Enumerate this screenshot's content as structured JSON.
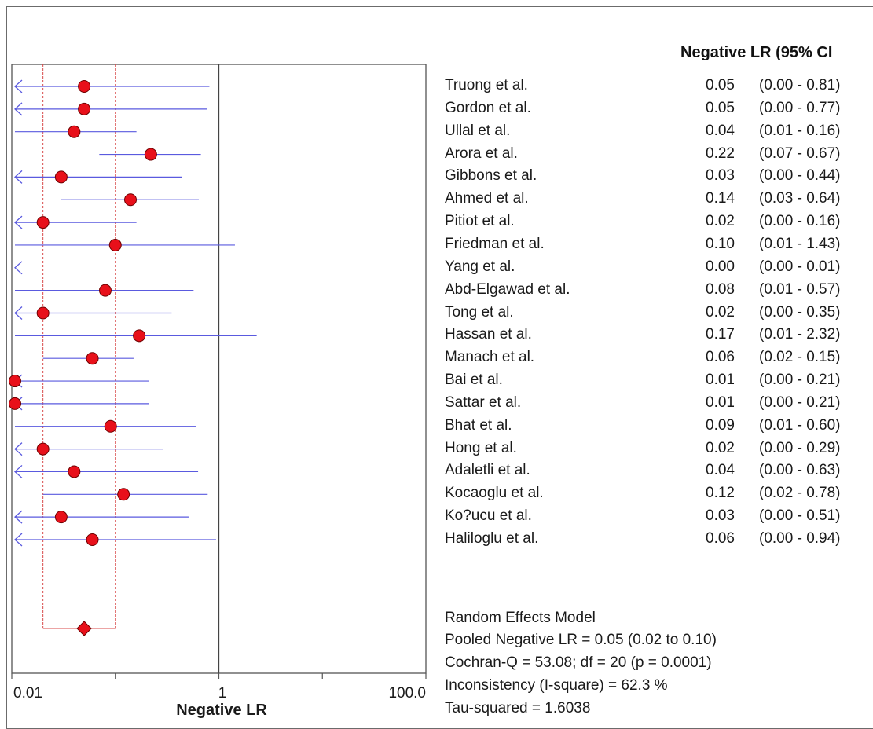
{
  "chart_data": {
    "type": "forest",
    "xlabel": "Negative LR",
    "x_scale": "log",
    "xlim": [
      0.01,
      100.0
    ],
    "x_ticks": [
      "0.01",
      "1",
      "100.0"
    ],
    "column_header": "Negative LR (95% CI",
    "studies": [
      {
        "name": "Truong et al.",
        "value": 0.05,
        "value_label": "0.05",
        "lower": 0.0,
        "upper": 0.81,
        "ci_label": "(0.00 - 0.81)"
      },
      {
        "name": "Gordon et al.",
        "value": 0.05,
        "value_label": "0.05",
        "lower": 0.0,
        "upper": 0.77,
        "ci_label": "(0.00 - 0.77)"
      },
      {
        "name": "Ullal et al.",
        "value": 0.04,
        "value_label": "0.04",
        "lower": 0.01,
        "upper": 0.16,
        "ci_label": "(0.01 - 0.16)"
      },
      {
        "name": "Arora et al.",
        "value": 0.22,
        "value_label": "0.22",
        "lower": 0.07,
        "upper": 0.67,
        "ci_label": "(0.07 - 0.67)"
      },
      {
        "name": "Gibbons et al.",
        "value": 0.03,
        "value_label": "0.03",
        "lower": 0.0,
        "upper": 0.44,
        "ci_label": "(0.00 - 0.44)"
      },
      {
        "name": "Ahmed et al.",
        "value": 0.14,
        "value_label": "0.14",
        "lower": 0.03,
        "upper": 0.64,
        "ci_label": "(0.03 - 0.64)"
      },
      {
        "name": "Pitiot et al.",
        "value": 0.02,
        "value_label": "0.02",
        "lower": 0.0,
        "upper": 0.16,
        "ci_label": "(0.00 - 0.16)"
      },
      {
        "name": "Friedman et al.",
        "value": 0.1,
        "value_label": "0.10",
        "lower": 0.01,
        "upper": 1.43,
        "ci_label": "(0.01 - 1.43)"
      },
      {
        "name": "Yang et al.",
        "value": 0.0,
        "value_label": "0.00",
        "lower": 0.0,
        "upper": 0.01,
        "ci_label": "(0.00 - 0.01)"
      },
      {
        "name": "Abd-Elgawad et al.",
        "value": 0.08,
        "value_label": "0.08",
        "lower": 0.01,
        "upper": 0.57,
        "ci_label": "(0.01 - 0.57)"
      },
      {
        "name": "Tong et al.",
        "value": 0.02,
        "value_label": "0.02",
        "lower": 0.0,
        "upper": 0.35,
        "ci_label": "(0.00 - 0.35)"
      },
      {
        "name": "Hassan et al.",
        "value": 0.17,
        "value_label": "0.17",
        "lower": 0.01,
        "upper": 2.32,
        "ci_label": "(0.01 - 2.32)"
      },
      {
        "name": "Manach et al.",
        "value": 0.06,
        "value_label": "0.06",
        "lower": 0.02,
        "upper": 0.15,
        "ci_label": "(0.02 - 0.15)"
      },
      {
        "name": "Bai et al.",
        "value": 0.01,
        "value_label": "0.01",
        "lower": 0.0,
        "upper": 0.21,
        "ci_label": "(0.00 - 0.21)"
      },
      {
        "name": "Sattar et al.",
        "value": 0.01,
        "value_label": "0.01",
        "lower": 0.0,
        "upper": 0.21,
        "ci_label": "(0.00 - 0.21)"
      },
      {
        "name": "Bhat et al.",
        "value": 0.09,
        "value_label": "0.09",
        "lower": 0.01,
        "upper": 0.6,
        "ci_label": "(0.01 - 0.60)"
      },
      {
        "name": "Hong et al.",
        "value": 0.02,
        "value_label": "0.02",
        "lower": 0.0,
        "upper": 0.29,
        "ci_label": "(0.00 - 0.29)"
      },
      {
        "name": "Adaletli et al.",
        "value": 0.04,
        "value_label": "0.04",
        "lower": 0.0,
        "upper": 0.63,
        "ci_label": "(0.00 - 0.63)"
      },
      {
        "name": "Kocaoglu et al.",
        "value": 0.12,
        "value_label": "0.12",
        "lower": 0.02,
        "upper": 0.78,
        "ci_label": "(0.02 - 0.78)"
      },
      {
        "name": "Ko?ucu et al.",
        "value": 0.03,
        "value_label": "0.03",
        "lower": 0.0,
        "upper": 0.51,
        "ci_label": "(0.00 - 0.51)"
      },
      {
        "name": "Haliloglu et al.",
        "value": 0.06,
        "value_label": "0.06",
        "lower": 0.0,
        "upper": 0.94,
        "ci_label": "(0.00 - 0.94)"
      }
    ],
    "pooled": {
      "value": 0.05,
      "lower": 0.02,
      "upper": 0.1
    },
    "summary": {
      "model": "Random Effects Model",
      "pooled": "Pooled Negative LR = 0.05 (0.02 to 0.10)",
      "cochran": "Cochran-Q = 53.08; df =  20 (p = 0.0001)",
      "inconsistency": "Inconsistency (I-square) = 62.3 %",
      "tau": "Tau-squared = 1.6038"
    },
    "colors": {
      "marker": "#e8101a",
      "marker_edge": "#6e0000",
      "ci_line": "#5a5adf",
      "pooled_ci": "#d84a4a",
      "axis": "#555555"
    }
  }
}
